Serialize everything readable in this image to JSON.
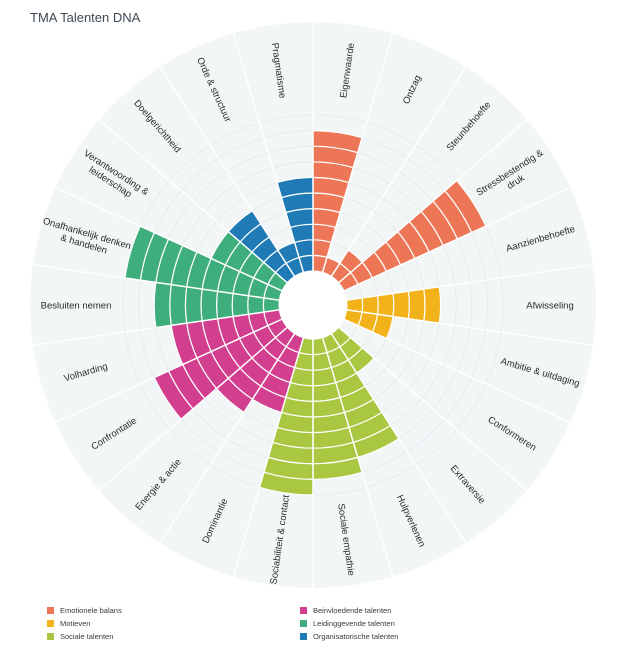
{
  "title": "TMA Talenten DNA",
  "chart_data": {
    "type": "radial-bar",
    "title": "TMA Talenten DNA",
    "max_value": 10,
    "groups": [
      {
        "name": "Emotionele balans",
        "color": "#ec7656"
      },
      {
        "name": "Motieven",
        "color": "#f2b21a"
      },
      {
        "name": "Sociale talenten",
        "color": "#a9c740"
      },
      {
        "name": "Beinvloedende talenten",
        "color": "#d33f8f"
      },
      {
        "name": "Leidinggevende talenten",
        "color": "#3fae7d"
      },
      {
        "name": "Organisatorische talenten",
        "color": "#1f7ab5"
      }
    ],
    "categories": [
      {
        "label": "Eigenwaarde",
        "value": 9,
        "group": "Emotionele balans"
      },
      {
        "label": "Ontzag",
        "value": 1,
        "group": "Emotionele balans"
      },
      {
        "label": "Steunbehoefte",
        "value": 2,
        "group": "Emotionele balans"
      },
      {
        "label": "Stressbestendig & druk",
        "value": 10,
        "group": "Emotionele balans"
      },
      {
        "label": "Aanzienbehoefte",
        "value": 0,
        "group": "Emotionele balans"
      },
      {
        "label": "Afwisseling",
        "value": 6,
        "group": "Motieven"
      },
      {
        "label": "Ambitie & uitdaging",
        "value": 3,
        "group": "Motieven"
      },
      {
        "label": "Conformeren",
        "value": 0,
        "group": "Sociale talenten"
      },
      {
        "label": "Extraversie",
        "value": 3,
        "group": "Sociale talenten"
      },
      {
        "label": "Hulpverlenen",
        "value": 8,
        "group": "Sociale talenten"
      },
      {
        "label": "Sociale empathie",
        "value": 9,
        "group": "Sociale talenten"
      },
      {
        "label": "Sociabiliteit & contact",
        "value": 10,
        "group": "Sociale talenten"
      },
      {
        "label": "Dominantie",
        "value": 5,
        "group": "Beinvloedende talenten"
      },
      {
        "label": "Energie & actie",
        "value": 6,
        "group": "Beinvloedende talenten"
      },
      {
        "label": "Confrontatie",
        "value": 9,
        "group": "Beinvloedende talenten"
      },
      {
        "label": "Volharding",
        "value": 7,
        "group": "Beinvloedende talenten"
      },
      {
        "label": "Besluiten nemen",
        "value": 8,
        "group": "Leidinggevende talenten"
      },
      {
        "label": "Onafhankelijk denken & handelen",
        "value": 10,
        "group": "Leidinggevende talenten"
      },
      {
        "label": "Verantwoording & leiderschap",
        "value": 5,
        "group": "Leidinggevende talenten"
      },
      {
        "label": "Doelgerichtheid",
        "value": 5,
        "group": "Organisatorische talenten"
      },
      {
        "label": "Orde & structuur",
        "value": 2,
        "group": "Organisatorische talenten"
      },
      {
        "label": "Pragmatisme",
        "value": 6,
        "group": "Organisatorische talenten"
      }
    ]
  }
}
